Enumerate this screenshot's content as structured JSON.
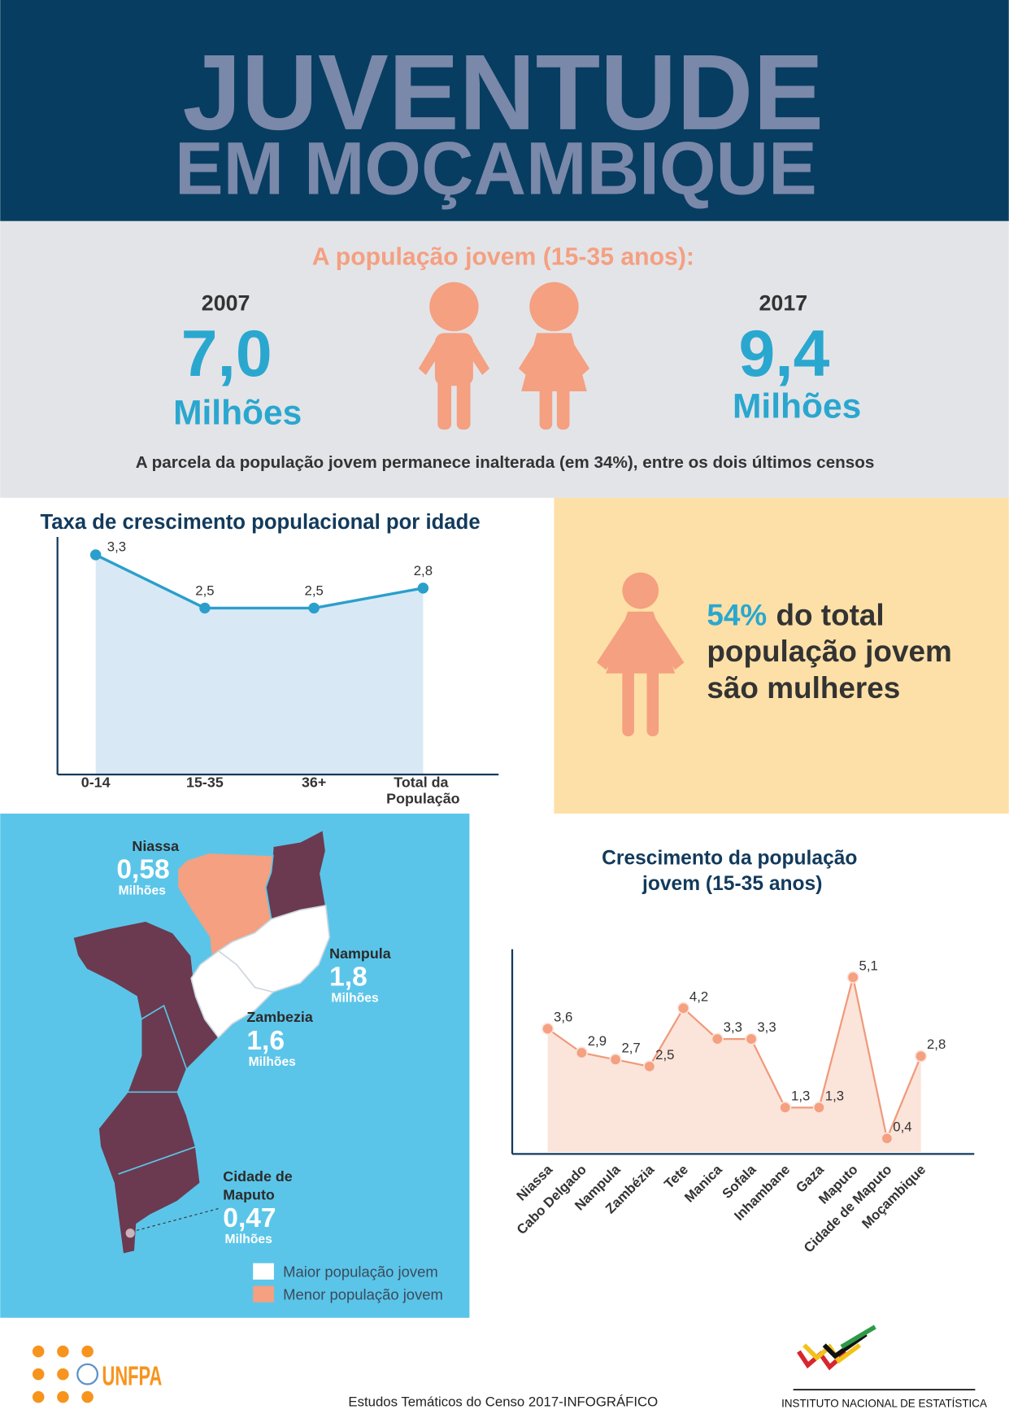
{
  "header": {
    "title_line1": "JUVENTUDE",
    "title_line2": "EM MOÇAMBIQUE"
  },
  "summary": {
    "heading": "A população jovem (15-35 anos):",
    "left": {
      "year": "2007",
      "value": "7,0",
      "unit": "Milhões"
    },
    "right": {
      "year": "2017",
      "value": "9,4",
      "unit": "Milhões"
    },
    "note": "A parcela da população jovem permanece inalterada (em 34%), entre os dois últimos censos"
  },
  "chart_data": [
    {
      "type": "line",
      "title": "Taxa de crescimento populacional por idade",
      "categories": [
        "0-14",
        "15-35",
        "36+",
        "Total da População"
      ],
      "values": [
        3.3,
        2.5,
        2.5,
        2.8
      ],
      "value_labels": [
        "3,3",
        "2,5",
        "2,5",
        "2,8"
      ],
      "ylim": [
        0,
        3.5
      ],
      "color": "#2a9fcc",
      "fill": "#d8e9f5"
    },
    {
      "type": "line",
      "title": "Crescimento da população jovem (15-35 anos)",
      "categories": [
        "Niassa",
        "Cabo Delgado",
        "Nampula",
        "Zambézia",
        "Tete",
        "Manica",
        "Sofala",
        "Inhambane",
        "Gaza",
        "Maputo",
        "Cidade de Maputo",
        "Moçambique"
      ],
      "values": [
        3.6,
        2.9,
        2.7,
        2.5,
        4.2,
        3.3,
        3.3,
        1.3,
        1.3,
        5.1,
        0.4,
        2.8
      ],
      "value_labels": [
        "3,6",
        "2,9",
        "2,7",
        "2,5",
        "4,2",
        "3,3",
        "3,3",
        "1,3",
        "1,3",
        "5,1",
        "0,4",
        "2,8"
      ],
      "ylim": [
        0,
        6
      ],
      "color": "#f09a7b",
      "fill": "#fbe4da"
    }
  ],
  "callout": {
    "highlight": "54%",
    "lines": [
      "do total",
      "população jovem",
      "são mulheres"
    ]
  },
  "map": {
    "regions": [
      {
        "name": "Niassa",
        "value": "0,58",
        "unit": "Milhões"
      },
      {
        "name": "Nampula",
        "value": "1,8",
        "unit": "Milhões"
      },
      {
        "name": "Zambezia",
        "value": "1,6",
        "unit": "Milhões"
      },
      {
        "name": "Cidade de Maputo",
        "value": "0,47",
        "unit": "Milhões"
      }
    ],
    "legend": [
      {
        "label": "Maior população jovem",
        "color": "#ffffff"
      },
      {
        "label": "Menor população jovem",
        "color": "#f4a081"
      }
    ]
  },
  "footer": {
    "logo": "UNFPA",
    "caption": "Estudos Temáticos do Censo 2017-INFOGRÁFICO",
    "institute": "INSTITUTO NACIONAL DE ESTATÍSTICA"
  }
}
